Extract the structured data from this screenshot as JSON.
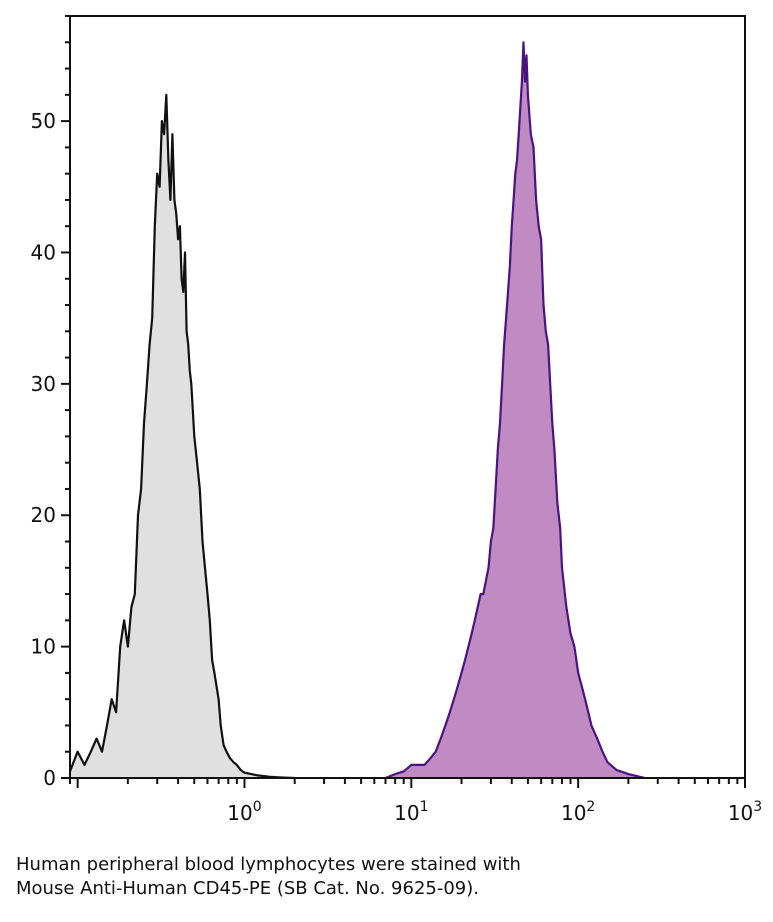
{
  "chart_data": {
    "type": "area",
    "title": "",
    "xlabel": "",
    "ylabel": "",
    "xscale": "log",
    "xlim": [
      0.09,
      1000
    ],
    "ylim": [
      0,
      58
    ],
    "grid": false,
    "legend": "none",
    "x_ticks": [
      {
        "value": 1,
        "base": "10",
        "exp": "0"
      },
      {
        "value": 10,
        "base": "10",
        "exp": "1"
      },
      {
        "value": 100,
        "base": "10",
        "exp": "2"
      },
      {
        "value": 1000,
        "base": "10",
        "exp": "3"
      }
    ],
    "y_ticks": [
      0,
      10,
      20,
      30,
      40,
      50
    ],
    "series": [
      {
        "fill": "#e0e0e0",
        "stroke": "#111111",
        "x": [
          0.09,
          0.1,
          0.11,
          0.12,
          0.13,
          0.14,
          0.15,
          0.16,
          0.17,
          0.18,
          0.19,
          0.2,
          0.21,
          0.22,
          0.23,
          0.24,
          0.25,
          0.26,
          0.27,
          0.28,
          0.29,
          0.3,
          0.31,
          0.32,
          0.33,
          0.34,
          0.35,
          0.36,
          0.37,
          0.38,
          0.39,
          0.4,
          0.41,
          0.42,
          0.43,
          0.44,
          0.45,
          0.46,
          0.47,
          0.48,
          0.5,
          0.52,
          0.54,
          0.56,
          0.58,
          0.6,
          0.62,
          0.64,
          0.66,
          0.68,
          0.7,
          0.72,
          0.75,
          0.78,
          0.82,
          0.86,
          0.9,
          0.95,
          1.0,
          1.1,
          1.2,
          1.4,
          1.6,
          1.8,
          2.0
        ],
        "y": [
          0.5,
          2,
          1,
          2,
          3,
          2,
          4,
          6,
          5,
          10,
          12,
          10,
          13,
          14,
          20,
          22,
          27,
          30,
          33,
          35,
          42,
          46,
          45,
          50,
          49,
          52,
          47,
          44,
          49,
          44,
          43,
          41,
          42,
          38,
          37,
          40,
          34,
          33,
          31,
          30,
          26,
          24,
          22,
          18,
          16,
          14,
          12,
          9,
          8,
          7,
          6,
          4,
          2.5,
          2,
          1.5,
          1.2,
          1,
          0.6,
          0.4,
          0.3,
          0.2,
          0.1,
          0.05,
          0.02,
          0
        ]
      },
      {
        "fill": "#c08ac2",
        "stroke": "#4a1480",
        "x": [
          7,
          8,
          9,
          10,
          11,
          12,
          13,
          14,
          15,
          16,
          17,
          18,
          19,
          20,
          21,
          22,
          23,
          24,
          25,
          26,
          27,
          28,
          29,
          30,
          31,
          32,
          33,
          34,
          35,
          36,
          37,
          38,
          39,
          40,
          41,
          42,
          43,
          44,
          45,
          46,
          47,
          48,
          49,
          50,
          52,
          54,
          56,
          58,
          60,
          62,
          64,
          66,
          68,
          70,
          72,
          75,
          78,
          80,
          85,
          90,
          95,
          100,
          105,
          110,
          115,
          120,
          130,
          140,
          150,
          170,
          200,
          250
        ],
        "y": [
          0,
          0.3,
          0.5,
          1,
          1,
          1,
          1.5,
          2,
          3,
          4,
          5,
          6,
          7,
          8,
          9,
          10,
          11,
          12,
          13,
          14,
          14,
          15,
          16,
          18,
          19,
          22,
          25,
          27,
          30,
          33,
          35,
          37,
          39,
          42,
          44,
          46,
          47,
          49,
          51,
          53,
          56,
          53,
          55,
          52,
          49,
          48,
          44,
          42,
          41,
          36,
          34,
          33,
          30,
          27,
          25,
          21,
          19,
          16,
          13,
          11,
          10,
          8,
          7,
          6,
          5,
          4,
          3,
          2,
          1.2,
          0.6,
          0.3,
          0
        ]
      }
    ]
  },
  "caption": {
    "line1": "Human peripheral blood lymphocytes were stained with",
    "line2": "Mouse Anti-Human CD45-PE (SB Cat. No. 9625-09)."
  }
}
